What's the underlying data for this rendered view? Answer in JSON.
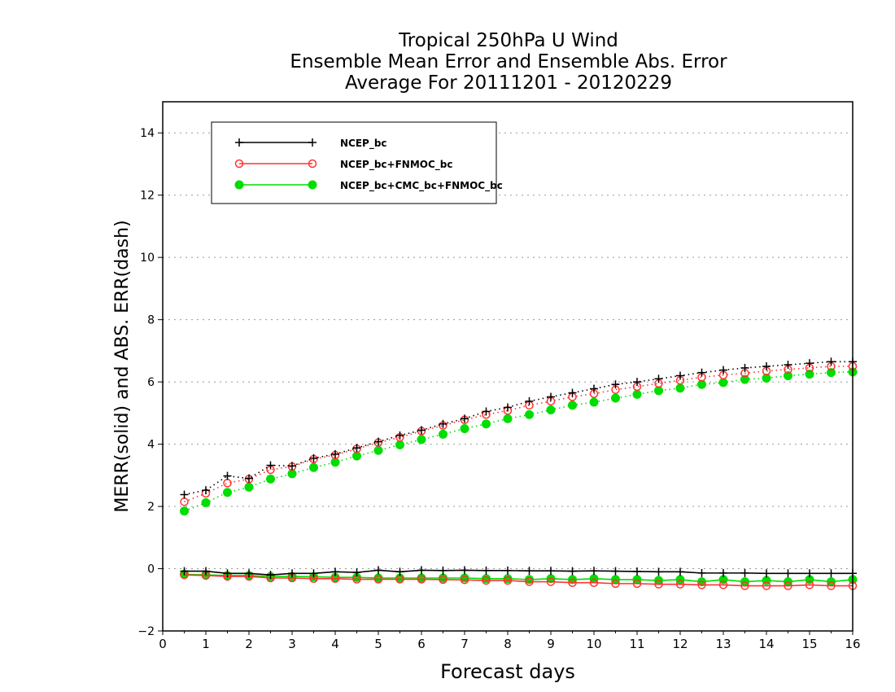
{
  "chart_data": {
    "type": "line",
    "title": [
      "Tropical 250hPa U Wind",
      "Ensemble Mean Error and Ensemble Abs. Error",
      "Average For 20111201 - 20120229"
    ],
    "xlabel": "Forecast days",
    "ylabel": "MERR(solid) and ABS. ERR(dash)",
    "xlim": [
      0,
      16
    ],
    "ylim": [
      -2,
      15
    ],
    "xticks": [
      "0",
      "1",
      "2",
      "3",
      "4",
      "5",
      "6",
      "7",
      "8",
      "9",
      "10",
      "11",
      "12",
      "13",
      "14",
      "15",
      "16"
    ],
    "yticks": [
      "−2",
      "0",
      "2",
      "4",
      "6",
      "8",
      "10",
      "12",
      "14"
    ],
    "ytick_values": [
      -2,
      0,
      2,
      4,
      6,
      8,
      10,
      12,
      14
    ],
    "grid": "horizontal dotted",
    "legend_position": "top-left",
    "x": [
      0.5,
      1,
      1.5,
      2,
      2.5,
      3,
      3.5,
      4,
      4.5,
      5,
      5.5,
      6,
      6.5,
      7,
      7.5,
      8,
      8.5,
      9,
      9.5,
      10,
      10.5,
      11,
      11.5,
      12,
      12.5,
      13,
      13.5,
      14,
      14.5,
      15,
      15.5,
      16
    ],
    "series": [
      {
        "name": "NCEP_bc",
        "color": "#000000",
        "marker": "plus",
        "merr": [
          -0.08,
          -0.08,
          -0.15,
          -0.15,
          -0.2,
          -0.15,
          -0.15,
          -0.1,
          -0.12,
          -0.05,
          -0.1,
          -0.05,
          -0.06,
          -0.05,
          -0.06,
          -0.06,
          -0.07,
          -0.07,
          -0.08,
          -0.07,
          -0.08,
          -0.09,
          -0.1,
          -0.1,
          -0.14,
          -0.14,
          -0.14,
          -0.15,
          -0.15,
          -0.15,
          -0.15,
          -0.15
        ],
        "abs_err": [
          2.38,
          2.52,
          2.98,
          2.9,
          3.32,
          3.3,
          3.55,
          3.68,
          3.88,
          4.08,
          4.28,
          4.45,
          4.65,
          4.82,
          5.05,
          5.18,
          5.38,
          5.52,
          5.65,
          5.78,
          5.92,
          6.0,
          6.1,
          6.2,
          6.3,
          6.38,
          6.45,
          6.5,
          6.55,
          6.6,
          6.65,
          6.65
        ]
      },
      {
        "name": "NCEP_bc+FNMOC_bc",
        "color": "#ff3333",
        "marker": "open-circle",
        "merr": [
          -0.2,
          -0.22,
          -0.25,
          -0.25,
          -0.3,
          -0.3,
          -0.32,
          -0.32,
          -0.34,
          -0.34,
          -0.34,
          -0.34,
          -0.35,
          -0.36,
          -0.38,
          -0.38,
          -0.42,
          -0.42,
          -0.45,
          -0.45,
          -0.48,
          -0.48,
          -0.5,
          -0.5,
          -0.52,
          -0.52,
          -0.55,
          -0.55,
          -0.55,
          -0.52,
          -0.55,
          -0.55
        ],
        "abs_err": [
          2.15,
          2.42,
          2.75,
          2.88,
          3.18,
          3.28,
          3.52,
          3.65,
          3.85,
          4.05,
          4.22,
          4.42,
          4.6,
          4.78,
          4.95,
          5.08,
          5.25,
          5.38,
          5.52,
          5.62,
          5.75,
          5.85,
          5.95,
          6.05,
          6.15,
          6.22,
          6.28,
          6.35,
          6.4,
          6.45,
          6.5,
          6.5
        ]
      },
      {
        "name": "NCEP_bc+CMC_bc+FNMOC_bc",
        "color": "#00dd00",
        "marker": "filled-circle",
        "merr": [
          -0.18,
          -0.2,
          -0.22,
          -0.22,
          -0.25,
          -0.25,
          -0.26,
          -0.28,
          -0.28,
          -0.3,
          -0.3,
          -0.3,
          -0.3,
          -0.3,
          -0.32,
          -0.32,
          -0.35,
          -0.32,
          -0.35,
          -0.32,
          -0.35,
          -0.35,
          -0.38,
          -0.35,
          -0.42,
          -0.35,
          -0.42,
          -0.38,
          -0.42,
          -0.35,
          -0.42,
          -0.35
        ],
        "abs_err": [
          1.85,
          2.12,
          2.45,
          2.62,
          2.88,
          3.05,
          3.25,
          3.42,
          3.62,
          3.8,
          3.98,
          4.15,
          4.32,
          4.5,
          4.65,
          4.82,
          4.95,
          5.1,
          5.25,
          5.35,
          5.48,
          5.6,
          5.72,
          5.8,
          5.92,
          5.98,
          6.08,
          6.12,
          6.2,
          6.25,
          6.3,
          6.32
        ]
      }
    ]
  }
}
